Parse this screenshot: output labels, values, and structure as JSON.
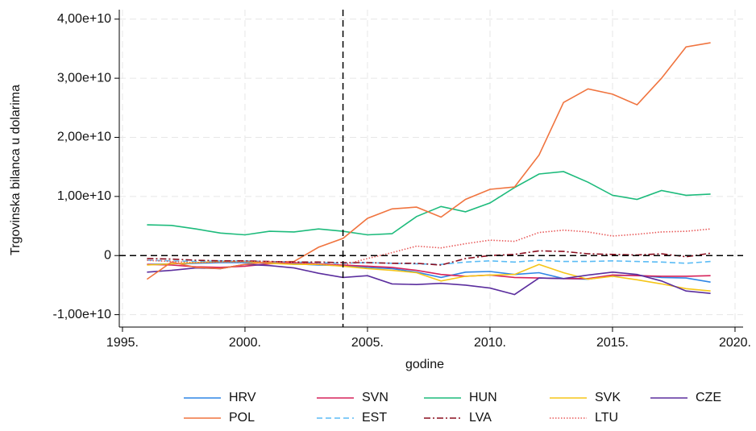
{
  "chart_data": {
    "type": "line",
    "x": [
      1996,
      1997,
      1998,
      1999,
      2000,
      2001,
      2002,
      2003,
      2004,
      2005,
      2006,
      2007,
      2008,
      2009,
      2010,
      2011,
      2012,
      2013,
      2014,
      2015,
      2016,
      2017,
      2018,
      2019
    ],
    "xlabel": "godine",
    "ylabel": "Trgovinska bilanca u dolarima",
    "xlim": [
      1994.87,
      2020.33
    ],
    "ylim": [
      -12100000000.0,
      41600000000.0
    ],
    "xticks": [
      {
        "value": 1995,
        "label": "1995."
      },
      {
        "value": 2000,
        "label": "2000."
      },
      {
        "value": 2005,
        "label": "2005."
      },
      {
        "value": 2010,
        "label": "2010."
      },
      {
        "value": 2015,
        "label": "2015."
      },
      {
        "value": 2020,
        "label": "2020."
      }
    ],
    "yticks": [
      {
        "value": -10000000000.0,
        "label": "-1,00e+10"
      },
      {
        "value": 0,
        "label": "0"
      },
      {
        "value": 10000000000.0,
        "label": "1,00e+10"
      },
      {
        "value": 20000000000.0,
        "label": "2,00e+10"
      },
      {
        "value": 30000000000.0,
        "label": "3,00e+10"
      },
      {
        "value": 40000000000.0,
        "label": "4,00e+10"
      }
    ],
    "grid": true,
    "vline": 2004,
    "hline": 0,
    "series": [
      {
        "name": "HRV",
        "color": "#2f86e6",
        "dash": "solid",
        "values": [
          -1500000000.0,
          -1400000000.0,
          -1300000000.0,
          -1200000000.0,
          -1200000000.0,
          -1300000000.0,
          -1400000000.0,
          -1600000000.0,
          -1700000000.0,
          -2000000000.0,
          -2200000000.0,
          -2800000000.0,
          -3700000000.0,
          -2800000000.0,
          -2700000000.0,
          -3200000000.0,
          -2900000000.0,
          -3900000000.0,
          -4000000000.0,
          -3400000000.0,
          -3300000000.0,
          -3700000000.0,
          -3800000000.0,
          -4500000000.0
        ]
      },
      {
        "name": "SVN",
        "color": "#d6225a",
        "dash": "solid",
        "values": [
          -1500000000.0,
          -1600000000.0,
          -1900000000.0,
          -2000000000.0,
          -1800000000.0,
          -1400000000.0,
          -1200000000.0,
          -1400000000.0,
          -1600000000.0,
          -1800000000.0,
          -2000000000.0,
          -2500000000.0,
          -3200000000.0,
          -3500000000.0,
          -3300000000.0,
          -3700000000.0,
          -3800000000.0,
          -3900000000.0,
          -3900000000.0,
          -3300000000.0,
          -3400000000.0,
          -3500000000.0,
          -3500000000.0,
          -3400000000.0
        ]
      },
      {
        "name": "HUN",
        "color": "#1dbb7c",
        "dash": "solid",
        "values": [
          5200000000.0,
          5100000000.0,
          4500000000.0,
          3800000000.0,
          3500000000.0,
          4100000000.0,
          4000000000.0,
          4500000000.0,
          4100000000.0,
          3500000000.0,
          3700000000.0,
          6600000000.0,
          8300000000.0,
          7400000000.0,
          8900000000.0,
          11500000000.0,
          13800000000.0,
          14200000000.0,
          12400000000.0,
          10200000000.0,
          9500000000.0,
          11000000000.0,
          10200000000.0,
          10400000000.0
        ]
      },
      {
        "name": "SVK",
        "color": "#f5c518",
        "dash": "solid",
        "values": [
          -1600000000.0,
          -1400000000.0,
          -1200000000.0,
          -1000000000.0,
          -1000000000.0,
          -1300000000.0,
          -1500000000.0,
          -1500000000.0,
          -1800000000.0,
          -2200000000.0,
          -2500000000.0,
          -2900000000.0,
          -4300000000.0,
          -3500000000.0,
          -3300000000.0,
          -3200000000.0,
          -1500000000.0,
          -2900000000.0,
          -4000000000.0,
          -3500000000.0,
          -4100000000.0,
          -4800000000.0,
          -5600000000.0,
          -6000000000.0
        ]
      },
      {
        "name": "CZE",
        "color": "#5b2e9e",
        "dash": "solid",
        "values": [
          -2800000000.0,
          -2500000000.0,
          -2100000000.0,
          -2200000000.0,
          -1500000000.0,
          -1700000000.0,
          -2100000000.0,
          -3000000000.0,
          -3700000000.0,
          -3400000000.0,
          -4800000000.0,
          -4900000000.0,
          -4700000000.0,
          -5000000000.0,
          -5500000000.0,
          -6600000000.0,
          -3800000000.0,
          -3900000000.0,
          -3300000000.0,
          -2800000000.0,
          -3200000000.0,
          -4300000000.0,
          -6000000000.0,
          -6400000000.0
        ]
      },
      {
        "name": "POL",
        "color": "#f0743f",
        "dash": "solid",
        "values": [
          -4000000000.0,
          -1100000000.0,
          -2000000000.0,
          -2200000000.0,
          -1500000000.0,
          -1100000000.0,
          -1000000000.0,
          1400000000.0,
          2900000000.0,
          6300000000.0,
          7900000000.0,
          8200000000.0,
          6500000000.0,
          9500000000.0,
          11200000000.0,
          11600000000.0,
          17000000000.0,
          25900000000.0,
          28200000000.0,
          27300000000.0,
          25500000000.0,
          30000000000.0,
          35300000000.0,
          36000000000.0
        ]
      },
      {
        "name": "EST",
        "color": "#5bbcf5",
        "dash": "dashed",
        "values": [
          -800000000.0,
          -900000000.0,
          -1000000000.0,
          -900000000.0,
          -900000000.0,
          -1000000000.0,
          -1100000000.0,
          -1200000000.0,
          -1300000000.0,
          -1200000000.0,
          -1300000000.0,
          -1400000000.0,
          -1500000000.0,
          -1100000000.0,
          -900000000.0,
          -1100000000.0,
          -800000000.0,
          -1000000000.0,
          -1000000000.0,
          -900000000.0,
          -1000000000.0,
          -1100000000.0,
          -1300000000.0,
          -1000000000.0
        ]
      },
      {
        "name": "LVA",
        "color": "#8b0e1f",
        "dash": "dashdot",
        "values": [
          -500000000.0,
          -600000000.0,
          -800000000.0,
          -900000000.0,
          -900000000.0,
          -1000000000.0,
          -1100000000.0,
          -1100000000.0,
          -1200000000.0,
          -1200000000.0,
          -1300000000.0,
          -1300000000.0,
          -1600000000.0,
          -500000000.0,
          0.0,
          200000000.0,
          800000000.0,
          700000000.0,
          300000000.0,
          200000000.0,
          100000000.0,
          300000000.0,
          -200000000.0,
          400000000.0
        ]
      },
      {
        "name": "LTU",
        "color": "#e85a5a",
        "dash": "dotted",
        "values": [
          -800000000.0,
          -1000000000.0,
          -1200000000.0,
          -1100000000.0,
          -1000000000.0,
          -1000000000.0,
          -1200000000.0,
          -1400000000.0,
          -1600000000.0,
          -500000000.0,
          500000000.0,
          1600000000.0,
          1300000000.0,
          2000000000.0,
          2600000000.0,
          2400000000.0,
          3900000000.0,
          4300000000.0,
          4000000000.0,
          3300000000.0,
          3600000000.0,
          4000000000.0,
          4100000000.0,
          4500000000.0
        ]
      }
    ]
  }
}
